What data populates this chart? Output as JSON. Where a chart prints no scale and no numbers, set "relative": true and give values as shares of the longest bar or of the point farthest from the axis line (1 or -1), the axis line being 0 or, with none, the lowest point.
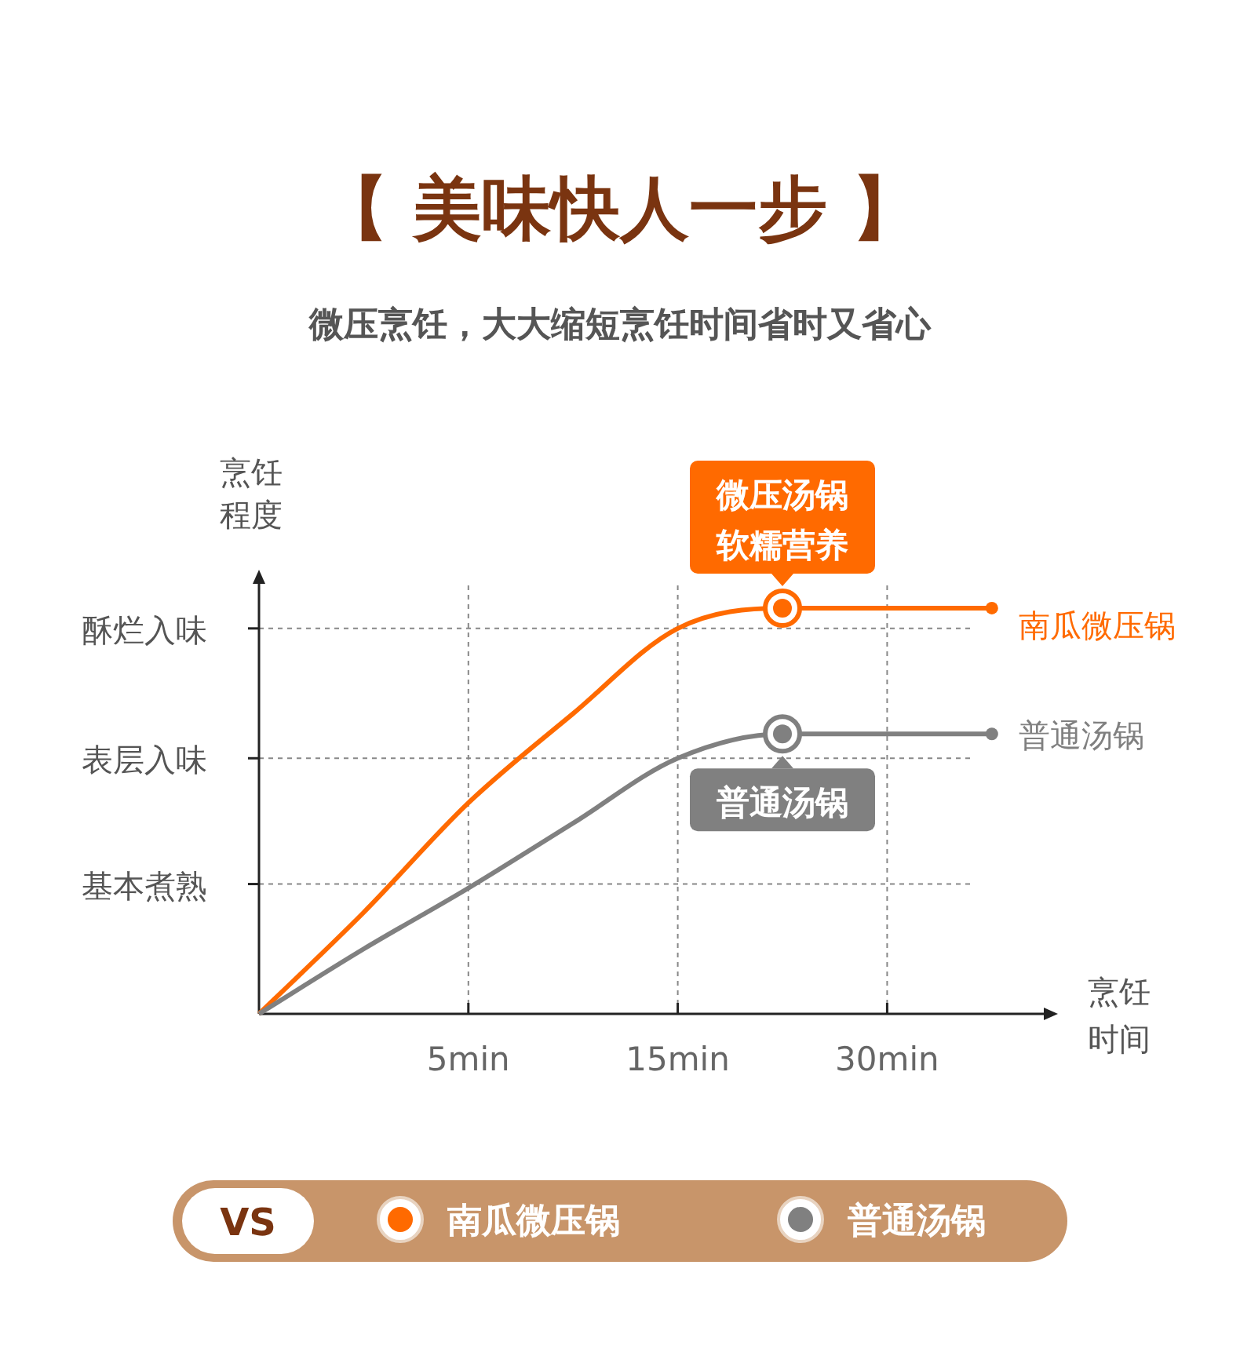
{
  "chart_data": {
    "type": "line",
    "title": "【 美味快人一步 】",
    "subtitle": "微压烹饪，大大缩短烹饪时间省时又省心",
    "xlabel": "烹饪时间",
    "ylabel": "烹饪程度",
    "relative": true,
    "categories": [
      null,
      null,
      "5min",
      null,
      "15min",
      null,
      "30min",
      null
    ],
    "ref_lines": [
      {
        "axis": "y",
        "value": 0.32,
        "label": "基本煮熟",
        "line_style": "dashed"
      },
      {
        "axis": "y",
        "value": 0.63,
        "label": "表层入味",
        "line_style": "dashed"
      },
      {
        "axis": "y",
        "value": 0.95,
        "label": "酥烂入味",
        "line_style": "dashed"
      }
    ],
    "grid": "x",
    "legend": "right",
    "series": [
      {
        "name": "南瓜微压锅",
        "color": "#ff6a00",
        "values": [
          0,
          0.25,
          0.52,
          0.74,
          0.95,
          1,
          1,
          1
        ]
      },
      {
        "name": "普通汤锅",
        "color": "#808080",
        "values": [
          0,
          0.16,
          0.31,
          0.47,
          0.63,
          0.69,
          0.69,
          0.69
        ]
      }
    ],
    "annotations": [
      {
        "text": "微压汤锅软糯营养",
        "y": 1
      },
      {
        "text": "普通汤锅",
        "y": 0.69
      },
      "VS"
    ]
  }
}
